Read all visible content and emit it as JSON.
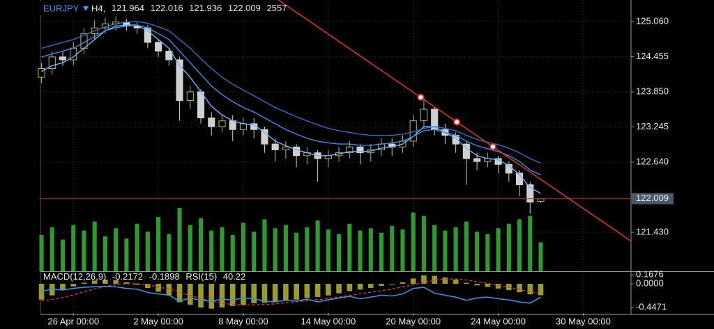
{
  "chart_data": {
    "type": "candlestick",
    "symbol": "EURJPY",
    "timeframe": "H4,",
    "x": [
      0,
      1,
      2,
      3,
      4,
      5,
      6,
      7,
      8,
      9,
      10,
      11,
      12,
      13,
      14,
      15,
      16,
      17,
      18,
      19,
      20,
      21,
      22,
      23,
      24,
      25,
      26,
      27,
      28,
      29,
      30,
      31,
      32,
      33,
      34,
      35,
      36,
      37,
      38,
      39,
      40,
      41,
      42,
      43,
      44,
      45,
      46,
      47
    ],
    "xlim": [
      -0.1,
      55.5
    ],
    "xticks": [
      {
        "value": 3,
        "label": "26 Apr 00:00"
      },
      {
        "value": 11,
        "label": "2 May 00:00"
      },
      {
        "value": 19,
        "label": "8 May 00:00"
      },
      {
        "value": 27,
        "label": "14 May 00:00"
      },
      {
        "value": 35,
        "label": "20 May 00:00"
      },
      {
        "value": 43,
        "label": "24 May 00:00"
      },
      {
        "value": 51,
        "label": "30 May 00:00"
      }
    ],
    "ylim": [
      120.76,
      125.43
    ],
    "yticks": [
      {
        "value": 125.06,
        "label": "125.060"
      },
      124.455,
      {
        "value": 123.85,
        "label": "123.850"
      },
      123.245,
      {
        "value": 122.64,
        "label": "122.640"
      },
      {
        "value": 121.43,
        "label": "121.430"
      }
    ],
    "grid": true,
    "candles": {
      "up_color": "#b8b86a",
      "down_color": "#d0d0d0",
      "open": [
        124.1,
        124.25,
        124.45,
        124.4,
        124.6,
        124.85,
        124.95,
        125.02,
        125.05,
        124.98,
        124.95,
        124.7,
        124.55,
        124.4,
        123.7,
        123.85,
        123.4,
        123.25,
        123.35,
        123.2,
        123.3,
        123.2,
        122.95,
        122.85,
        122.9,
        122.75,
        122.8,
        122.7,
        122.75,
        122.8,
        122.9,
        122.8,
        122.85,
        122.95,
        122.9,
        123.0,
        123.35,
        123.55,
        123.2,
        123.1,
        122.95,
        122.7,
        122.65,
        122.7,
        122.6,
        122.45,
        122.25,
        121.964
      ],
      "high": [
        124.35,
        124.55,
        124.55,
        124.7,
        124.95,
        125.08,
        125.12,
        125.15,
        125.1,
        125.05,
        125.0,
        124.75,
        124.6,
        124.45,
        123.95,
        123.9,
        123.5,
        123.45,
        123.45,
        123.4,
        123.4,
        123.25,
        123.05,
        123.0,
        122.95,
        122.9,
        122.85,
        122.85,
        122.9,
        123.0,
        122.95,
        122.95,
        123.05,
        123.05,
        123.1,
        123.45,
        123.75,
        123.6,
        123.3,
        123.15,
        123.0,
        122.8,
        122.8,
        122.75,
        122.65,
        122.5,
        122.3,
        122.016
      ],
      "low": [
        124.0,
        124.15,
        124.3,
        124.3,
        124.5,
        124.75,
        124.85,
        124.9,
        124.9,
        124.85,
        124.6,
        124.45,
        124.3,
        123.35,
        123.55,
        123.3,
        123.1,
        123.15,
        123.0,
        123.1,
        123.05,
        122.8,
        122.65,
        122.7,
        122.55,
        122.6,
        122.3,
        122.55,
        122.65,
        122.7,
        122.6,
        122.65,
        122.75,
        122.75,
        122.8,
        122.9,
        123.25,
        123.1,
        122.95,
        122.8,
        122.25,
        122.5,
        122.55,
        122.45,
        122.3,
        122.05,
        121.75,
        121.936
      ],
      "close": [
        124.25,
        124.45,
        124.4,
        124.6,
        124.85,
        124.95,
        125.02,
        125.05,
        124.98,
        124.95,
        124.7,
        124.55,
        124.4,
        123.7,
        123.85,
        123.4,
        123.25,
        123.35,
        123.2,
        123.3,
        123.2,
        122.95,
        122.85,
        122.9,
        122.75,
        122.8,
        122.7,
        122.75,
        122.8,
        122.9,
        122.8,
        122.85,
        122.95,
        122.9,
        123.0,
        123.35,
        123.55,
        123.2,
        123.1,
        122.95,
        122.7,
        122.65,
        122.7,
        122.6,
        122.45,
        122.25,
        121.95,
        122.009
      ]
    },
    "volume": {
      "color": "#2e9b2e",
      "ylim": [
        0,
        24000
      ],
      "values": [
        3200,
        3900,
        2800,
        4100,
        3600,
        4400,
        3100,
        3800,
        2900,
        4200,
        3500,
        4800,
        3300,
        5600,
        4100,
        4700,
        3600,
        3900,
        3200,
        4300,
        3500,
        4600,
        3800,
        4100,
        3400,
        3900,
        4500,
        3700,
        3300,
        4200,
        3600,
        3800,
        3400,
        4000,
        3700,
        5200,
        4900,
        4100,
        3600,
        3900,
        4400,
        3500,
        3300,
        3800,
        4200,
        4600,
        4900,
        2557
      ]
    },
    "moving_averages": [
      {
        "color": "#6fb6ff",
        "values": [
          124.2,
          124.3,
          124.35,
          124.45,
          124.6,
          124.75,
          124.9,
          124.98,
          125.0,
          125.0,
          124.9,
          124.75,
          124.6,
          124.3,
          124.1,
          123.85,
          123.6,
          123.45,
          123.35,
          123.3,
          123.28,
          123.15,
          123.0,
          122.92,
          122.85,
          122.8,
          122.75,
          122.75,
          122.78,
          122.82,
          122.82,
          122.83,
          122.88,
          122.9,
          122.95,
          123.08,
          123.25,
          123.25,
          123.15,
          123.05,
          122.88,
          122.75,
          122.7,
          122.68,
          122.58,
          122.42,
          122.2,
          122.1
        ]
      },
      {
        "color": "#3d8fe6",
        "values": [
          124.45,
          124.5,
          124.55,
          124.6,
          124.7,
          124.8,
          124.9,
          124.95,
          124.98,
          125.0,
          124.95,
          124.85,
          124.75,
          124.55,
          124.35,
          124.15,
          123.95,
          123.8,
          123.68,
          123.58,
          123.5,
          123.4,
          123.3,
          123.2,
          123.12,
          123.05,
          123.0,
          122.97,
          122.95,
          122.95,
          122.93,
          122.93,
          122.95,
          122.97,
          123.0,
          123.08,
          123.18,
          123.2,
          123.15,
          123.1,
          123.0,
          122.92,
          122.87,
          122.82,
          122.75,
          122.65,
          122.5,
          122.42
        ]
      },
      {
        "color": "#2f6fc4",
        "values": [
          124.6,
          124.65,
          124.7,
          124.75,
          124.82,
          124.9,
          124.97,
          125.02,
          125.05,
          125.06,
          125.03,
          124.97,
          124.9,
          124.75,
          124.6,
          124.42,
          124.25,
          124.1,
          123.98,
          123.88,
          123.78,
          123.68,
          123.58,
          123.5,
          123.42,
          123.35,
          123.28,
          123.22,
          123.18,
          123.15,
          123.12,
          123.1,
          123.1,
          123.1,
          123.12,
          123.16,
          123.22,
          123.25,
          123.22,
          123.18,
          123.1,
          123.03,
          122.98,
          122.94,
          122.88,
          122.8,
          122.7,
          122.62
        ]
      }
    ],
    "trendline": {
      "color": "#e8322a",
      "x": [
        22.3,
        55.5
      ],
      "y": [
        125.43,
        121.28
      ],
      "anchors_x": [
        35.7,
        39.1,
        42.5
      ],
      "anchors_y": [
        123.755,
        123.33,
        122.905
      ]
    },
    "price_line_color": "#c8262a",
    "macd": {
      "label": "MACD(12,26,9)",
      "ylim": [
        -0.553,
        0.197
      ],
      "yticks": [
        0.1676,
        {
          "value": 0,
          "label": "0.0000"
        },
        -0.4471
      ],
      "hist_color": "#9a9a2e",
      "signal_color": "#e8322a",
      "values": [
        -0.3,
        -0.22,
        -0.12,
        -0.05,
        0.02,
        0.06,
        0.08,
        0.07,
        0.03,
        -0.02,
        -0.08,
        -0.15,
        -0.22,
        -0.35,
        -0.4,
        -0.45,
        -0.47,
        -0.45,
        -0.42,
        -0.4,
        -0.37,
        -0.36,
        -0.34,
        -0.32,
        -0.3,
        -0.27,
        -0.25,
        -0.22,
        -0.18,
        -0.14,
        -0.11,
        -0.08,
        -0.04,
        -0.01,
        0.03,
        0.1,
        0.16,
        0.15,
        0.12,
        0.08,
        0.02,
        -0.03,
        -0.06,
        -0.09,
        -0.12,
        -0.16,
        -0.2,
        -0.2172
      ],
      "signal": [
        -0.32,
        -0.3,
        -0.26,
        -0.21,
        -0.15,
        -0.1,
        -0.05,
        -0.02,
        0.0,
        0.0,
        -0.02,
        -0.06,
        -0.1,
        -0.16,
        -0.22,
        -0.28,
        -0.33,
        -0.37,
        -0.39,
        -0.4,
        -0.4,
        -0.39,
        -0.38,
        -0.36,
        -0.34,
        -0.32,
        -0.3,
        -0.28,
        -0.25,
        -0.22,
        -0.19,
        -0.16,
        -0.13,
        -0.1,
        -0.06,
        -0.02,
        0.03,
        0.07,
        0.09,
        0.09,
        0.07,
        0.04,
        0.01,
        -0.03,
        -0.07,
        -0.11,
        -0.15,
        -0.1898
      ],
      "rsi": {
        "label": "RSI(15)",
        "color": "#3a8ee8",
        "ylim": [
          0,
          100
        ],
        "values": [
          55,
          60,
          58,
          62,
          65,
          66,
          67,
          66,
          62,
          60,
          52,
          48,
          45,
          30,
          38,
          32,
          30,
          35,
          33,
          38,
          36,
          30,
          28,
          32,
          30,
          35,
          28,
          33,
          38,
          42,
          36,
          40,
          45,
          43,
          48,
          62,
          65,
          50,
          45,
          40,
          32,
          38,
          40,
          36,
          33,
          28,
          25,
          40.22
        ]
      }
    }
  }
}
